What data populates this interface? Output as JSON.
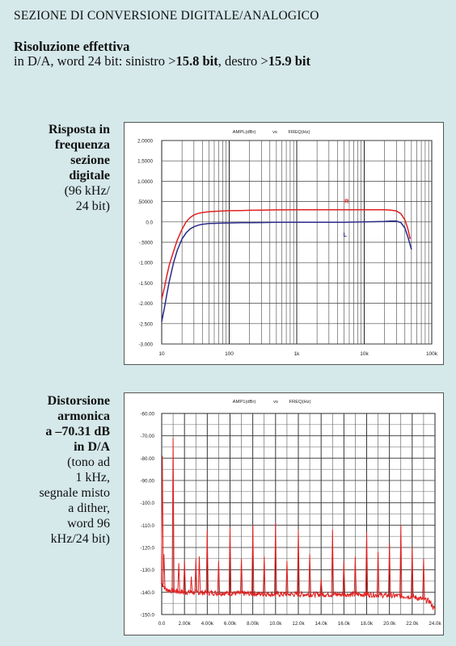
{
  "header": {
    "section_title": "SEZIONE DI CONVERSIONE DIGITALE/ANALOGICO",
    "resolution_title": "Risoluzione effettiva",
    "resolution_prefix": "in D/A, word 24 bit: sinistro >",
    "left_bits": "15.8 bit",
    "resolution_middle": ", destro >",
    "right_bits": "15.9 bit"
  },
  "caption1": {
    "bold_lines": [
      "Risposta in",
      "frequenza",
      "sezione",
      "digitale"
    ],
    "normal_lines": [
      "(96 kHz/",
      "24 bit)"
    ]
  },
  "caption2": {
    "bold_lines": [
      "Distorsione",
      "armonica",
      "a –70.31 dB",
      "in D/A"
    ],
    "normal_lines": [
      "(tono ad",
      "1 kHz,",
      "segnale misto",
      "a dither,",
      "word 96",
      "kHz/24 bit)"
    ]
  },
  "chart_data": [
    {
      "type": "line",
      "header_left": "AMPL(dBr)",
      "header_mid": "vs",
      "header_right": "FREQ(Hz)",
      "x_scale": "log",
      "xlim": [
        10,
        100000
      ],
      "ylim": [
        -3.0,
        2.0
      ],
      "xticks": [
        10,
        100,
        1000,
        10000,
        100000
      ],
      "xtick_labels": [
        "10",
        "100",
        "1k",
        "10k",
        "100k"
      ],
      "yticks": [
        2.0,
        1.5,
        1.0,
        0.5,
        0.0,
        -0.5,
        -1.0,
        -1.5,
        -2.0,
        -2.5,
        -3.0
      ],
      "ytick_labels": [
        "2.0000",
        "1.5000",
        "1.0000",
        ".50000",
        "0.0",
        "-.5000",
        "-1.000",
        "-1.500",
        "-2.000",
        "-2.500",
        "-3.000"
      ],
      "grid": true,
      "colors": {
        "R": "#e02020",
        "L": "#2a2a8a"
      },
      "series": [
        {
          "name": "R",
          "x": [
            10,
            11,
            12,
            13,
            15,
            17,
            20,
            23,
            26,
            30,
            35,
            40,
            50,
            60,
            80,
            100,
            150,
            200,
            300,
            500,
            1000,
            2000,
            5000,
            10000,
            20000,
            25000,
            30000,
            35000,
            40000,
            44000,
            48000
          ],
          "y": [
            -1.9,
            -1.6,
            -1.3,
            -1.05,
            -0.72,
            -0.45,
            -0.18,
            0.0,
            0.1,
            0.17,
            0.21,
            0.23,
            0.25,
            0.26,
            0.27,
            0.275,
            0.28,
            0.285,
            0.29,
            0.295,
            0.3,
            0.3,
            0.3,
            0.3,
            0.3,
            0.29,
            0.27,
            0.2,
            0.05,
            -0.15,
            -0.42
          ]
        },
        {
          "name": "L",
          "x": [
            10,
            11,
            12,
            13,
            15,
            17,
            20,
            23,
            26,
            30,
            35,
            40,
            50,
            60,
            80,
            100,
            150,
            200,
            300,
            500,
            1000,
            2000,
            5000,
            10000,
            20000,
            25000,
            30000,
            35000,
            40000,
            45000,
            50000
          ],
          "y": [
            -2.45,
            -2.1,
            -1.75,
            -1.45,
            -1.0,
            -0.7,
            -0.42,
            -0.27,
            -0.18,
            -0.12,
            -0.08,
            -0.06,
            -0.04,
            -0.035,
            -0.03,
            -0.025,
            -0.02,
            -0.02,
            -0.015,
            -0.01,
            -0.01,
            -0.01,
            -0.01,
            0.0,
            0.01,
            0.02,
            0.02,
            -0.02,
            -0.15,
            -0.4,
            -0.68
          ]
        }
      ]
    },
    {
      "type": "line",
      "header_left": "AMP1(dBr)",
      "header_mid": "vs",
      "header_right": "FREQ(Hz)",
      "xlim": [
        0,
        24000
      ],
      "ylim": [
        -150,
        -60
      ],
      "xticks": [
        0,
        2000,
        4000,
        6000,
        8000,
        10000,
        12000,
        14000,
        16000,
        18000,
        20000,
        22000,
        24000
      ],
      "xtick_labels": [
        "0.0",
        "2.00k",
        "4.00k",
        "6.00k",
        "8.00k",
        "10.0k",
        "12.0k",
        "14.0k",
        "16.0k",
        "18.0k",
        "20.0k",
        "22.0k",
        "24.0k"
      ],
      "yticks": [
        -60,
        -70,
        -80,
        -90,
        -100,
        -110,
        -120,
        -130,
        -140,
        -150
      ],
      "ytick_labels": [
        "-60.00",
        "-70.00",
        "-80.00",
        "-90.00",
        "-100.0",
        "-110.0",
        "-120.0",
        "-130.0",
        "-140.0",
        "-150.0"
      ],
      "grid": true,
      "color": "#e02020",
      "noise_floor": [
        [
          0,
          -136
        ],
        [
          400,
          -139
        ],
        [
          2000,
          -140
        ],
        [
          6000,
          -140.5
        ],
        [
          12000,
          -141
        ],
        [
          18000,
          -141
        ],
        [
          22000,
          -142
        ],
        [
          23500,
          -144
        ],
        [
          24000,
          -148
        ]
      ],
      "peaks": [
        {
          "x": 60,
          "y": -79
        },
        {
          "x": 200,
          "y": -123
        },
        {
          "x": 1000,
          "y": -71
        },
        {
          "x": 1500,
          "y": -127
        },
        {
          "x": 2000,
          "y": -126
        },
        {
          "x": 2600,
          "y": -133
        },
        {
          "x": 3000,
          "y": -125
        },
        {
          "x": 3300,
          "y": -124
        },
        {
          "x": 4000,
          "y": -112
        },
        {
          "x": 5000,
          "y": -126
        },
        {
          "x": 6000,
          "y": -111
        },
        {
          "x": 7000,
          "y": -125
        },
        {
          "x": 8000,
          "y": -110
        },
        {
          "x": 9000,
          "y": -124
        },
        {
          "x": 10000,
          "y": -109
        },
        {
          "x": 11000,
          "y": -126
        },
        {
          "x": 12000,
          "y": -112
        },
        {
          "x": 13000,
          "y": -123
        },
        {
          "x": 14000,
          "y": -134
        },
        {
          "x": 15000,
          "y": -112
        },
        {
          "x": 16000,
          "y": -126
        },
        {
          "x": 17000,
          "y": -124
        },
        {
          "x": 18000,
          "y": -113
        },
        {
          "x": 19000,
          "y": -122
        },
        {
          "x": 20000,
          "y": -118
        },
        {
          "x": 21000,
          "y": -110
        },
        {
          "x": 22000,
          "y": -120
        },
        {
          "x": 23000,
          "y": -125
        }
      ]
    }
  ]
}
